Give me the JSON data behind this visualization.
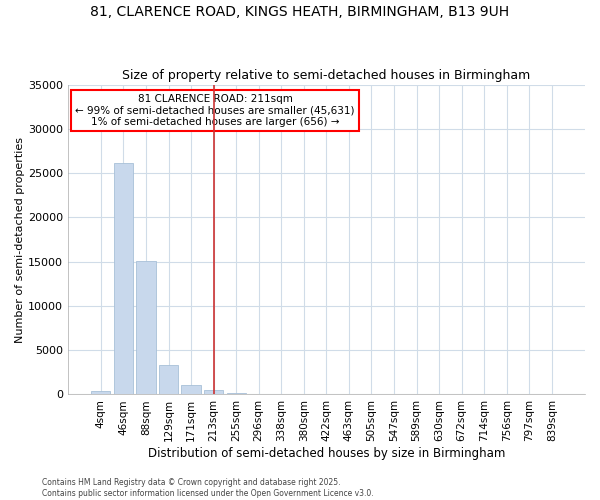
{
  "title_line1": "81, CLARENCE ROAD, KINGS HEATH, BIRMINGHAM, B13 9UH",
  "title_line2": "Size of property relative to semi-detached houses in Birmingham",
  "xlabel": "Distribution of semi-detached houses by size in Birmingham",
  "ylabel": "Number of semi-detached properties",
  "categories": [
    "4sqm",
    "46sqm",
    "88sqm",
    "129sqm",
    "171sqm",
    "213sqm",
    "255sqm",
    "296sqm",
    "338sqm",
    "380sqm",
    "422sqm",
    "463sqm",
    "505sqm",
    "547sqm",
    "589sqm",
    "630sqm",
    "672sqm",
    "714sqm",
    "756sqm",
    "797sqm",
    "839sqm"
  ],
  "values": [
    350,
    26100,
    15100,
    3300,
    1100,
    450,
    150,
    50,
    10,
    5,
    3,
    2,
    1,
    1,
    0,
    0,
    0,
    0,
    0,
    0,
    0
  ],
  "bar_color": "#c8d8ec",
  "bar_edge_color": "#a8c0d8",
  "vline_index": 5,
  "vline_color": "#cc3333",
  "annotation_title": "81 CLARENCE ROAD: 211sqm",
  "annotation_line2": "← 99% of semi-detached houses are smaller (45,631)",
  "annotation_line3": "1% of semi-detached houses are larger (656) →",
  "ylim": [
    0,
    35000
  ],
  "yticks": [
    0,
    5000,
    10000,
    15000,
    20000,
    25000,
    30000,
    35000
  ],
  "background_color": "#ffffff",
  "plot_bg_color": "#ffffff",
  "grid_color": "#d0dce8",
  "footer_line1": "Contains HM Land Registry data © Crown copyright and database right 2025.",
  "footer_line2": "Contains public sector information licensed under the Open Government Licence v3.0."
}
